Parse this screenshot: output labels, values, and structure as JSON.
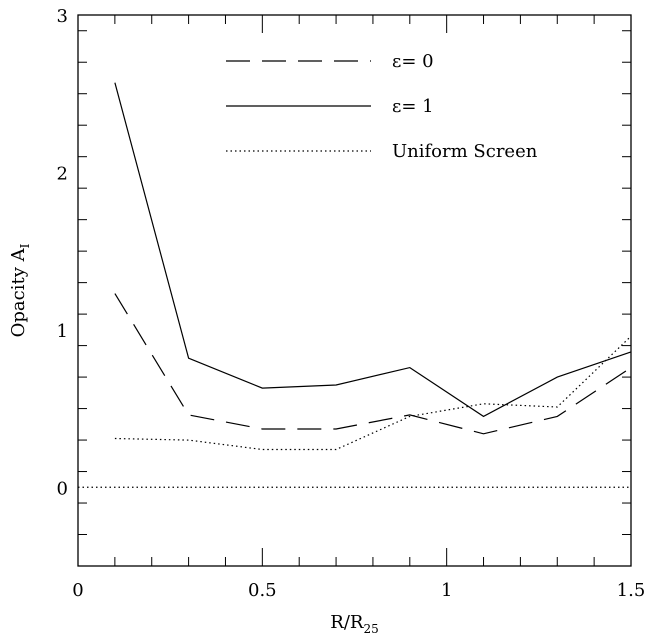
{
  "chart_data": {
    "type": "line",
    "xlabel": {
      "main": "R/R",
      "sub": "25"
    },
    "ylabel": {
      "main": "Opacity A",
      "sub": "I"
    },
    "xlim": [
      0,
      1.5
    ],
    "ylim": [
      -0.5,
      3
    ],
    "x_ticks": [
      0,
      0.5,
      1,
      1.5
    ],
    "x_tick_labels": [
      "0",
      "0.5",
      "1",
      "1.5"
    ],
    "y_ticks": [
      0,
      1,
      2,
      3
    ],
    "y_tick_labels": [
      "0",
      "1",
      "2",
      "3"
    ],
    "x_minor_step": 0.1,
    "y_minor_step": 0.2,
    "grid": false,
    "legend_placement": "top-center",
    "series": [
      {
        "name": "ε= 0",
        "style": "dashed",
        "x": [
          0.1,
          0.3,
          0.5,
          0.7,
          0.9,
          1.1,
          1.3,
          1.5
        ],
        "values": [
          1.23,
          0.46,
          0.37,
          0.37,
          0.46,
          0.34,
          0.45,
          0.76
        ]
      },
      {
        "name": "ε= 1",
        "style": "solid",
        "x": [
          0.1,
          0.3,
          0.5,
          0.7,
          0.9,
          1.1,
          1.3,
          1.5
        ],
        "values": [
          2.57,
          0.82,
          0.63,
          0.65,
          0.76,
          0.45,
          0.7,
          0.86
        ]
      },
      {
        "name": "Uniform Screen",
        "style": "dotted",
        "x": [
          0.1,
          0.3,
          0.5,
          0.7,
          0.9,
          1.1,
          1.3,
          1.5
        ],
        "values": [
          0.31,
          0.3,
          0.24,
          0.24,
          0.45,
          0.53,
          0.51,
          0.96
        ]
      }
    ],
    "reference_line": {
      "y": 0,
      "style": "dotted"
    }
  }
}
